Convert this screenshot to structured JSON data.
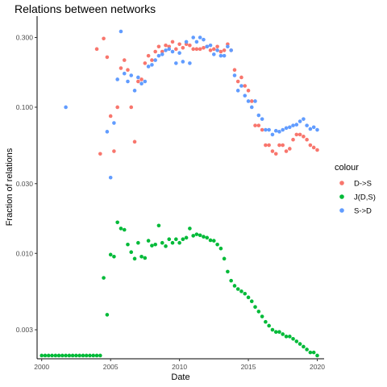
{
  "chart_data": {
    "type": "scatter",
    "title": "Relations between networks",
    "xlabel": "Date",
    "ylabel": "Fraction of relations",
    "x_scale": "time",
    "y_scale": "log",
    "xlim": [
      "1999-09-01",
      "2020-07-01"
    ],
    "ylim": [
      0.0019,
      0.42
    ],
    "x_ticks": [
      {
        "value": "2000-01-01",
        "label": "2000"
      },
      {
        "value": "2005-01-01",
        "label": "2005"
      },
      {
        "value": "2010-01-01",
        "label": "2010"
      },
      {
        "value": "2015-01-01",
        "label": "2015"
      },
      {
        "value": "2020-01-01",
        "label": "2020"
      }
    ],
    "y_ticks": [
      {
        "value": 0.003,
        "label": "0.003"
      },
      {
        "value": 0.01,
        "label": "0.010"
      },
      {
        "value": 0.03,
        "label": "0.030"
      },
      {
        "value": 0.1,
        "label": "0.100"
      },
      {
        "value": 0.3,
        "label": "0.300"
      }
    ],
    "grid": false,
    "legend": {
      "title": "colour",
      "position": "right"
    },
    "series": [
      {
        "name": "D->S",
        "color": "#F8766D",
        "points": [
          [
            "2004-01-01",
            0.25
          ],
          [
            "2004-04-01",
            0.048
          ],
          [
            "2004-07-01",
            0.295
          ],
          [
            "2004-10-01",
            0.22
          ],
          [
            "2005-01-01",
            0.087
          ],
          [
            "2005-04-01",
            0.05
          ],
          [
            "2005-07-01",
            0.1
          ],
          [
            "2005-10-01",
            0.185
          ],
          [
            "2006-01-01",
            0.21
          ],
          [
            "2006-04-01",
            0.18
          ],
          [
            "2006-07-01",
            0.1
          ],
          [
            "2006-10-01",
            0.058
          ],
          [
            "2007-01-01",
            0.15
          ],
          [
            "2007-04-01",
            0.155
          ],
          [
            "2007-07-01",
            0.2
          ],
          [
            "2007-10-01",
            0.225
          ],
          [
            "2008-01-01",
            0.21
          ],
          [
            "2008-04-01",
            0.24
          ],
          [
            "2008-07-01",
            0.26
          ],
          [
            "2008-10-01",
            0.24
          ],
          [
            "2009-01-01",
            0.265
          ],
          [
            "2009-04-01",
            0.26
          ],
          [
            "2009-07-01",
            0.28
          ],
          [
            "2009-10-01",
            0.25
          ],
          [
            "2010-01-01",
            0.27
          ],
          [
            "2010-04-01",
            0.255
          ],
          [
            "2010-07-01",
            0.27
          ],
          [
            "2010-10-01",
            0.265
          ],
          [
            "2011-01-01",
            0.25
          ],
          [
            "2011-04-01",
            0.25
          ],
          [
            "2011-07-01",
            0.25
          ],
          [
            "2011-10-01",
            0.255
          ],
          [
            "2012-01-01",
            0.26
          ],
          [
            "2012-04-01",
            0.245
          ],
          [
            "2012-07-01",
            0.25
          ],
          [
            "2012-10-01",
            0.26
          ],
          [
            "2013-01-01",
            0.24
          ],
          [
            "2013-04-01",
            0.245
          ],
          [
            "2013-07-01",
            0.27
          ],
          [
            "2013-10-01",
            0.245
          ],
          [
            "2014-01-01",
            0.18
          ],
          [
            "2014-04-01",
            0.15
          ],
          [
            "2014-07-01",
            0.16
          ],
          [
            "2014-10-01",
            0.14
          ],
          [
            "2015-01-01",
            0.13
          ],
          [
            "2015-04-01",
            0.11
          ],
          [
            "2015-07-01",
            0.075
          ],
          [
            "2015-10-01",
            0.075
          ],
          [
            "2016-01-01",
            0.07
          ],
          [
            "2016-04-01",
            0.055
          ],
          [
            "2016-07-01",
            0.055
          ],
          [
            "2016-10-01",
            0.05
          ],
          [
            "2017-01-01",
            0.048
          ],
          [
            "2017-04-01",
            0.055
          ],
          [
            "2017-07-01",
            0.055
          ],
          [
            "2017-10-01",
            0.05
          ],
          [
            "2018-01-01",
            0.052
          ],
          [
            "2018-04-01",
            0.06
          ],
          [
            "2018-07-01",
            0.065
          ],
          [
            "2018-10-01",
            0.065
          ],
          [
            "2019-01-01",
            0.063
          ],
          [
            "2019-04-01",
            0.06
          ],
          [
            "2019-07-01",
            0.055
          ],
          [
            "2019-10-01",
            0.053
          ],
          [
            "2020-01-01",
            0.051
          ]
        ]
      },
      {
        "name": "J(D,S)",
        "color": "#00BA38",
        "points": [
          [
            "2000-01-01",
            0.002
          ],
          [
            "2000-04-01",
            0.002
          ],
          [
            "2000-07-01",
            0.002
          ],
          [
            "2000-10-01",
            0.002
          ],
          [
            "2001-01-01",
            0.002
          ],
          [
            "2001-04-01",
            0.002
          ],
          [
            "2001-07-01",
            0.002
          ],
          [
            "2001-10-01",
            0.002
          ],
          [
            "2002-01-01",
            0.002
          ],
          [
            "2002-04-01",
            0.002
          ],
          [
            "2002-07-01",
            0.002
          ],
          [
            "2002-10-01",
            0.002
          ],
          [
            "2003-01-01",
            0.002
          ],
          [
            "2003-04-01",
            0.002
          ],
          [
            "2003-07-01",
            0.002
          ],
          [
            "2003-10-01",
            0.002
          ],
          [
            "2004-01-01",
            0.002
          ],
          [
            "2004-04-01",
            0.002
          ],
          [
            "2004-07-01",
            0.0068
          ],
          [
            "2004-10-01",
            0.0038
          ],
          [
            "2005-01-01",
            0.0098
          ],
          [
            "2005-04-01",
            0.0095
          ],
          [
            "2005-07-01",
            0.0163
          ],
          [
            "2005-10-01",
            0.0148
          ],
          [
            "2006-01-01",
            0.0145
          ],
          [
            "2006-04-01",
            0.0115
          ],
          [
            "2006-07-01",
            0.0102
          ],
          [
            "2006-10-01",
            0.0092
          ],
          [
            "2007-01-01",
            0.0118
          ],
          [
            "2007-04-01",
            0.0095
          ],
          [
            "2007-07-01",
            0.0093
          ],
          [
            "2007-10-01",
            0.0122
          ],
          [
            "2008-01-01",
            0.0113
          ],
          [
            "2008-04-01",
            0.0115
          ],
          [
            "2008-07-01",
            0.0155
          ],
          [
            "2008-10-01",
            0.0118
          ],
          [
            "2009-01-01",
            0.0112
          ],
          [
            "2009-04-01",
            0.0125
          ],
          [
            "2009-07-01",
            0.0118
          ],
          [
            "2009-10-01",
            0.0125
          ],
          [
            "2010-01-01",
            0.0118
          ],
          [
            "2010-04-01",
            0.0125
          ],
          [
            "2010-07-01",
            0.0128
          ],
          [
            "2010-10-01",
            0.0148
          ],
          [
            "2011-01-01",
            0.0132
          ],
          [
            "2011-04-01",
            0.0135
          ],
          [
            "2011-07-01",
            0.0133
          ],
          [
            "2011-10-01",
            0.013
          ],
          [
            "2012-01-01",
            0.0128
          ],
          [
            "2012-04-01",
            0.0123
          ],
          [
            "2012-07-01",
            0.0122
          ],
          [
            "2012-10-01",
            0.0115
          ],
          [
            "2013-01-01",
            0.0108
          ],
          [
            "2013-04-01",
            0.0092
          ],
          [
            "2013-07-01",
            0.0075
          ],
          [
            "2013-10-01",
            0.0065
          ],
          [
            "2014-01-01",
            0.006
          ],
          [
            "2014-04-01",
            0.0057
          ],
          [
            "2014-07-01",
            0.0055
          ],
          [
            "2014-10-01",
            0.0053
          ],
          [
            "2015-01-01",
            0.005
          ],
          [
            "2015-04-01",
            0.0047
          ],
          [
            "2015-07-01",
            0.0043
          ],
          [
            "2015-10-01",
            0.004
          ],
          [
            "2016-01-01",
            0.0037
          ],
          [
            "2016-04-01",
            0.0034
          ],
          [
            "2016-07-01",
            0.0032
          ],
          [
            "2016-10-01",
            0.003
          ],
          [
            "2017-01-01",
            0.0029
          ],
          [
            "2017-04-01",
            0.0029
          ],
          [
            "2017-07-01",
            0.0028
          ],
          [
            "2017-10-01",
            0.0027
          ],
          [
            "2018-01-01",
            0.0027
          ],
          [
            "2018-04-01",
            0.0026
          ],
          [
            "2018-07-01",
            0.0025
          ],
          [
            "2018-10-01",
            0.0024
          ],
          [
            "2019-01-01",
            0.0023
          ],
          [
            "2019-04-01",
            0.0022
          ],
          [
            "2019-07-01",
            0.0021
          ],
          [
            "2019-10-01",
            0.0021
          ],
          [
            "2020-01-01",
            0.002
          ]
        ]
      },
      {
        "name": "S->D",
        "color": "#619CFF",
        "points": [
          [
            "2001-10-01",
            0.1
          ],
          [
            "2004-10-01",
            0.068
          ],
          [
            "2005-01-01",
            0.033
          ],
          [
            "2005-04-01",
            0.078
          ],
          [
            "2005-07-01",
            0.155
          ],
          [
            "2005-10-01",
            0.33
          ],
          [
            "2006-01-01",
            0.17
          ],
          [
            "2006-04-01",
            0.15
          ],
          [
            "2006-07-01",
            0.165
          ],
          [
            "2006-10-01",
            0.13
          ],
          [
            "2007-01-01",
            0.16
          ],
          [
            "2007-04-01",
            0.145
          ],
          [
            "2007-07-01",
            0.15
          ],
          [
            "2007-10-01",
            0.19
          ],
          [
            "2008-01-01",
            0.195
          ],
          [
            "2008-04-01",
            0.21
          ],
          [
            "2008-07-01",
            0.225
          ],
          [
            "2008-10-01",
            0.23
          ],
          [
            "2009-01-01",
            0.245
          ],
          [
            "2009-04-01",
            0.25
          ],
          [
            "2009-07-01",
            0.24
          ],
          [
            "2009-10-01",
            0.2
          ],
          [
            "2010-01-01",
            0.235
          ],
          [
            "2010-04-01",
            0.205
          ],
          [
            "2010-07-01",
            0.28
          ],
          [
            "2010-10-01",
            0.2
          ],
          [
            "2011-01-01",
            0.3
          ],
          [
            "2011-04-01",
            0.28
          ],
          [
            "2011-07-01",
            0.3
          ],
          [
            "2011-10-01",
            0.29
          ],
          [
            "2012-01-01",
            0.26
          ],
          [
            "2012-04-01",
            0.265
          ],
          [
            "2012-07-01",
            0.23
          ],
          [
            "2012-10-01",
            0.245
          ],
          [
            "2013-01-01",
            0.225
          ],
          [
            "2013-04-01",
            0.225
          ],
          [
            "2013-07-01",
            0.26
          ],
          [
            "2013-10-01",
            0.245
          ],
          [
            "2014-01-01",
            0.165
          ],
          [
            "2014-04-01",
            0.13
          ],
          [
            "2014-07-01",
            0.14
          ],
          [
            "2014-10-01",
            0.12
          ],
          [
            "2015-01-01",
            0.11
          ],
          [
            "2015-04-01",
            0.1
          ],
          [
            "2015-07-01",
            0.11
          ],
          [
            "2015-10-01",
            0.088
          ],
          [
            "2016-01-01",
            0.083
          ],
          [
            "2016-04-01",
            0.07
          ],
          [
            "2016-07-01",
            0.07
          ],
          [
            "2016-10-01",
            0.065
          ],
          [
            "2017-01-01",
            0.069
          ],
          [
            "2017-04-01",
            0.068
          ],
          [
            "2017-07-01",
            0.07
          ],
          [
            "2017-10-01",
            0.072
          ],
          [
            "2018-01-01",
            0.073
          ],
          [
            "2018-04-01",
            0.075
          ],
          [
            "2018-07-01",
            0.076
          ],
          [
            "2018-10-01",
            0.08
          ],
          [
            "2019-01-01",
            0.083
          ],
          [
            "2019-04-01",
            0.075
          ],
          [
            "2019-07-01",
            0.071
          ],
          [
            "2019-10-01",
            0.073
          ],
          [
            "2020-01-01",
            0.07
          ]
        ]
      }
    ]
  }
}
